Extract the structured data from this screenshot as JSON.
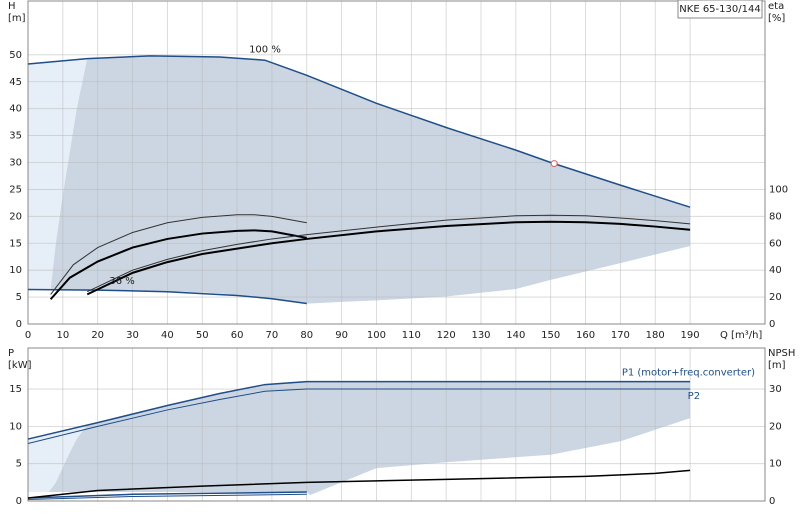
{
  "chart_data": [
    {
      "type": "line",
      "title": "NKE 65-130/144",
      "y_label": [
        "H",
        "[m]"
      ],
      "y2_label": [
        "eta",
        "[%]"
      ],
      "x_label": "Q [m³/h]",
      "xlim": [
        0,
        211.5
      ],
      "xticks": [
        0,
        10,
        20,
        30,
        40,
        50,
        60,
        70,
        80,
        90,
        100,
        110,
        120,
        130,
        140,
        150,
        160,
        170,
        180,
        190
      ],
      "ylim": [
        0,
        60
      ],
      "yticks": [
        0,
        5,
        10,
        15,
        20,
        25,
        30,
        35,
        40,
        45,
        50
      ],
      "y2lim": [
        0,
        240
      ],
      "y2ticks": [
        0,
        20,
        40,
        60,
        80,
        100
      ],
      "grid": true,
      "areas": [
        {
          "color": "#e6eef7",
          "x": [
            0,
            2,
            4,
            6.5,
            8,
            10,
            12,
            14,
            17
          ],
          "upper": [
            48.3,
            48.4,
            48.5,
            48.6,
            48.7,
            48.8,
            49.0,
            49.1,
            49.3
          ],
          "lower": [
            6.4,
            6.4,
            6.4,
            6.4,
            15,
            24,
            32,
            40,
            49.3
          ]
        },
        {
          "color": "#cbd6e2",
          "x": [
            6.5,
            8,
            10,
            12,
            14,
            17,
            25,
            35,
            45,
            55,
            68,
            80,
            81,
            90,
            100,
            120,
            140,
            150,
            170,
            190
          ],
          "upper": [
            6.4,
            15,
            24,
            32,
            40,
            49.3,
            49.6,
            49.8,
            49.8,
            49.6,
            49.0,
            46.2,
            45.9,
            43.5,
            41.0,
            36.5,
            32.3,
            30.0,
            25.8,
            21.7
          ],
          "lower": [
            6.4,
            6.4,
            6.4,
            6.3,
            6.3,
            6.3,
            6.3,
            6.1,
            6.0,
            5.7,
            4.9,
            3.8,
            3.8,
            4.1,
            4.4,
            5.1,
            6.5,
            8.2,
            11.3,
            14.5
          ]
        }
      ],
      "series": [
        {
          "color": "#1f4e89",
          "width": 1.5,
          "x": [
            0,
            17,
            35,
            55,
            68,
            80,
            100,
            120,
            140,
            150,
            170,
            190
          ],
          "values": [
            48.3,
            49.3,
            49.8,
            49.6,
            49.0,
            46.2,
            41.0,
            36.5,
            32.3,
            30.0,
            25.8,
            21.7
          ]
        },
        {
          "color": "#1f4e89",
          "width": 1.5,
          "x": [
            0,
            20,
            40,
            60,
            70,
            80
          ],
          "values": [
            6.4,
            6.3,
            6.0,
            5.3,
            4.7,
            3.8
          ]
        },
        {
          "color": "#333333",
          "width": 1,
          "axis": "y2",
          "x": [
            6.5,
            13,
            20,
            30,
            40,
            50,
            60,
            65,
            70,
            80
          ],
          "values": [
            22,
            44,
            56.8,
            68,
            75.2,
            79.2,
            81.2,
            81.2,
            80,
            75.2
          ]
        },
        {
          "color": "#000000",
          "width": 2,
          "axis": "y2",
          "x": [
            6.5,
            12,
            20,
            30,
            40,
            50,
            60,
            65,
            70,
            80
          ],
          "values": [
            18.4,
            34.4,
            46.4,
            56.8,
            63.2,
            67.2,
            69.2,
            69.6,
            68.8,
            64
          ]
        },
        {
          "color": "#333333",
          "width": 1,
          "axis": "y2",
          "x": [
            17,
            30,
            40,
            50,
            60,
            70,
            80,
            100,
            120,
            140,
            150,
            160,
            170,
            180,
            190
          ],
          "values": [
            24,
            40,
            48,
            54.4,
            59.2,
            63.2,
            66.4,
            72,
            77.2,
            80.4,
            80.8,
            80.4,
            78.8,
            76.8,
            74.4
          ]
        },
        {
          "color": "#000000",
          "width": 2,
          "axis": "y2",
          "x": [
            17,
            30,
            40,
            50,
            60,
            70,
            80,
            100,
            120,
            140,
            150,
            160,
            170,
            180,
            190
          ],
          "values": [
            22,
            38,
            46,
            52,
            56,
            60,
            63.2,
            68.8,
            72.8,
            75.6,
            76,
            75.6,
            74.4,
            72.4,
            70
          ]
        }
      ],
      "points": [
        {
          "x": 151,
          "y": 29.8,
          "color": "#e05a5a"
        }
      ],
      "annotations": [
        {
          "text": "100 %",
          "x": 68,
          "y": 51
        },
        {
          "text": "36 %",
          "x": 27,
          "y": 8
        }
      ]
    },
    {
      "type": "line",
      "y_label": [
        "P",
        "[kW]"
      ],
      "y2_label": [
        "NPSH",
        "[m]"
      ],
      "xlim": [
        0,
        211.5
      ],
      "ylim": [
        0,
        20.5
      ],
      "yticks": [
        0,
        5,
        10,
        15
      ],
      "y2lim": [
        0,
        41
      ],
      "y2ticks": [
        0,
        10,
        20,
        30
      ],
      "grid": true,
      "areas": [
        {
          "color": "#e6eef7",
          "x": [
            0,
            3,
            6,
            8,
            10,
            12,
            14,
            17
          ],
          "upper": [
            8.3,
            8.6,
            9.0,
            9.2,
            9.4,
            9.6,
            9.9,
            10.2
          ],
          "lower": [
            1.2,
            1.2,
            1.2,
            2.5,
            4.5,
            6.5,
            8.3,
            10.2
          ]
        },
        {
          "color": "#cbd6e2",
          "x": [
            6,
            8,
            10,
            12,
            14,
            17,
            30,
            40,
            55,
            68,
            80,
            81,
            100,
            120,
            150,
            170,
            190
          ],
          "upper": [
            1.2,
            2.5,
            4.5,
            6.5,
            8.3,
            10.2,
            11.7,
            12.8,
            14.4,
            15.6,
            16,
            16,
            16,
            16,
            16,
            16,
            16
          ],
          "lower": [
            1.2,
            1.2,
            1.2,
            1.2,
            1.2,
            1.2,
            1.2,
            1.2,
            1.2,
            1.2,
            1.2,
            0.8,
            4.4,
            5.2,
            6.2,
            8.0,
            11.1
          ]
        }
      ],
      "series": [
        {
          "name": "P1 (motor+freq.converter)",
          "color": "#1f4e89",
          "width": 1.5,
          "x": [
            0,
            20,
            40,
            55,
            68,
            80,
            190
          ],
          "values": [
            8.3,
            10.5,
            12.8,
            14.4,
            15.6,
            16,
            16
          ]
        },
        {
          "name": "P2",
          "color": "#1f4e89",
          "width": 1,
          "x": [
            0,
            20,
            40,
            55,
            68,
            80,
            190
          ],
          "values": [
            7.7,
            10,
            12.2,
            13.6,
            14.7,
            15,
            15
          ]
        },
        {
          "color": "#1f4e89",
          "width": 1.5,
          "x": [
            0,
            30,
            80
          ],
          "values": [
            0.4,
            0.9,
            1.2
          ]
        },
        {
          "color": "#1f4e89",
          "width": 1,
          "x": [
            0,
            30,
            80
          ],
          "values": [
            0.2,
            0.6,
            0.9
          ]
        },
        {
          "color": "#000000",
          "width": 1.5,
          "axis": "y2",
          "x": [
            0,
            20,
            50,
            80,
            120,
            160,
            180,
            190
          ],
          "values": [
            0.8,
            2.8,
            4,
            5,
            5.8,
            6.6,
            7.4,
            8.2
          ]
        }
      ]
    }
  ]
}
